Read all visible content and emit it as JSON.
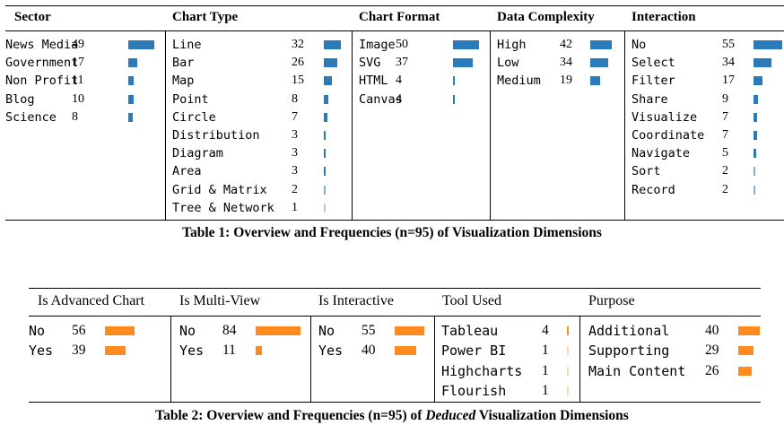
{
  "colors": {
    "table1_bar": "#2b7bba",
    "table2_bar": "#ff8a1f"
  },
  "table1": {
    "caption": "Table 1: Overview and Frequencies (n=95) of Visualization Dimensions",
    "columns": [
      {
        "header": "Sector",
        "rows": [
          {
            "label": "News Media",
            "value": 49
          },
          {
            "label": "Government",
            "value": 17
          },
          {
            "label": "Non Profit",
            "value": 11
          },
          {
            "label": "Blog",
            "value": 10
          },
          {
            "label": "Science",
            "value": 8
          }
        ]
      },
      {
        "header": "Chart Type",
        "rows": [
          {
            "label": "Line",
            "value": 32
          },
          {
            "label": "Bar",
            "value": 26
          },
          {
            "label": "Map",
            "value": 15
          },
          {
            "label": "Point",
            "value": 8
          },
          {
            "label": "Circle",
            "value": 7
          },
          {
            "label": "Distribution",
            "value": 3
          },
          {
            "label": "Diagram",
            "value": 3
          },
          {
            "label": "Area",
            "value": 3
          },
          {
            "label": "Grid & Matrix",
            "value": 2
          },
          {
            "label": "Tree & Network",
            "value": 1
          }
        ]
      },
      {
        "header": "Chart Format",
        "rows": [
          {
            "label": "Image",
            "value": 50
          },
          {
            "label": "SVG",
            "value": 37
          },
          {
            "label": "HTML",
            "value": 4
          },
          {
            "label": "Canvas",
            "value": 4
          }
        ]
      },
      {
        "header": "Data Complexity",
        "rows": [
          {
            "label": "High",
            "value": 42
          },
          {
            "label": "Low",
            "value": 34
          },
          {
            "label": "Medium",
            "value": 19
          }
        ]
      },
      {
        "header": "Interaction",
        "rows": [
          {
            "label": "No",
            "value": 55
          },
          {
            "label": "Select",
            "value": 34
          },
          {
            "label": "Filter",
            "value": 17
          },
          {
            "label": "Share",
            "value": 9
          },
          {
            "label": "Visualize",
            "value": 7
          },
          {
            "label": "Coordinate",
            "value": 7
          },
          {
            "label": "Navigate",
            "value": 5
          },
          {
            "label": "Sort",
            "value": 2
          },
          {
            "label": "Record",
            "value": 2
          }
        ]
      }
    ]
  },
  "table2": {
    "caption_prefix": "Table 2: Overview and Frequencies (n=95) of ",
    "caption_emph": "Deduced",
    "caption_suffix": " Visualization Dimensions",
    "columns": [
      {
        "header": "Is Advanced Chart",
        "rows": [
          {
            "label": "No",
            "value": 56
          },
          {
            "label": "Yes",
            "value": 39
          }
        ]
      },
      {
        "header": "Is Multi-View",
        "rows": [
          {
            "label": "No",
            "value": 84
          },
          {
            "label": "Yes",
            "value": 11
          }
        ]
      },
      {
        "header": "Is Interactive",
        "rows": [
          {
            "label": "No",
            "value": 55
          },
          {
            "label": "Yes",
            "value": 40
          }
        ]
      },
      {
        "header": "Tool Used",
        "rows": [
          {
            "label": "Tableau",
            "value": 4
          },
          {
            "label": "Power BI",
            "value": 1
          },
          {
            "label": "Highcharts",
            "value": 1
          },
          {
            "label": "Flourish",
            "value": 1
          }
        ]
      },
      {
        "header": "Purpose",
        "rows": [
          {
            "label": "Additional",
            "value": 40
          },
          {
            "label": "Supporting",
            "value": 29
          },
          {
            "label": "Main Content",
            "value": 26
          }
        ]
      }
    ]
  }
}
